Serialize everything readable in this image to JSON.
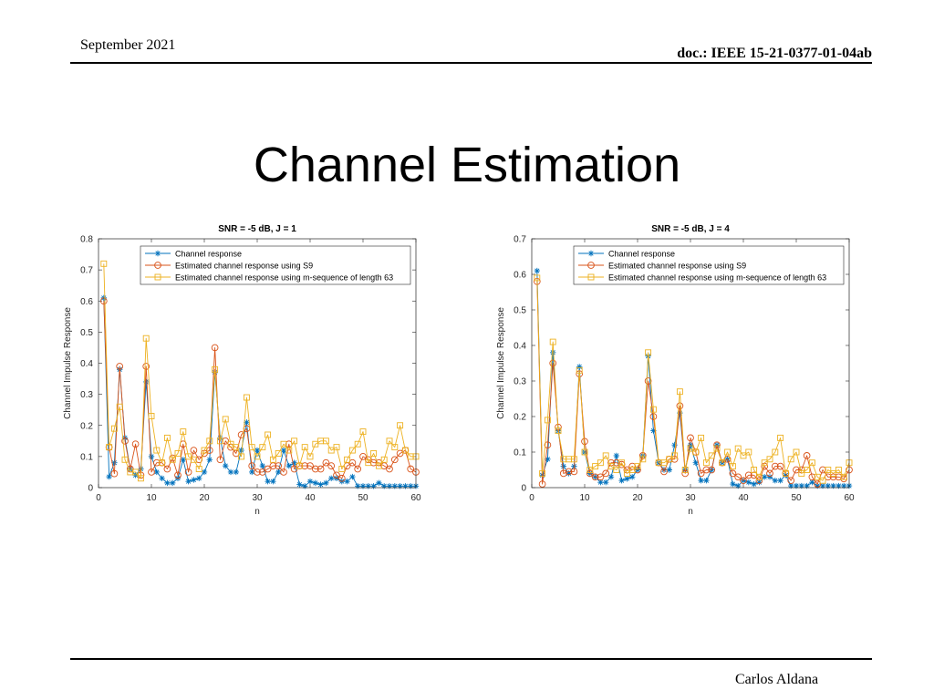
{
  "header": {
    "date": "September 2021",
    "doc_id": "doc.: IEEE 15-21-0377-01-04ab"
  },
  "slide": {
    "title": "Channel Estimation"
  },
  "footer": {
    "author": "Carlos Aldana"
  },
  "colors": {
    "series_1": "#0072BD",
    "series_2": "#D95319",
    "series_3": "#EDB120"
  },
  "chart_data": [
    {
      "type": "line",
      "title": "SNR = -5 dB, J = 1",
      "xlabel": "n",
      "ylabel": "Channel Impulse Response",
      "xlim": [
        0,
        60
      ],
      "ylim": [
        0,
        0.8
      ],
      "xticks": [
        0,
        10,
        20,
        30,
        40,
        50,
        60
      ],
      "yticks": [
        0,
        0.1,
        0.2,
        0.3,
        0.4,
        0.5,
        0.6,
        0.7,
        0.8
      ],
      "grid": false,
      "legend_position": "top-right",
      "x": [
        1,
        2,
        3,
        4,
        5,
        6,
        7,
        8,
        9,
        10,
        11,
        12,
        13,
        14,
        15,
        16,
        17,
        18,
        19,
        20,
        21,
        22,
        23,
        24,
        25,
        26,
        27,
        28,
        29,
        30,
        31,
        32,
        33,
        34,
        35,
        36,
        37,
        38,
        39,
        40,
        41,
        42,
        43,
        44,
        45,
        46,
        47,
        48,
        49,
        50,
        51,
        52,
        53,
        54,
        55,
        56,
        57,
        58,
        59,
        60
      ],
      "series": [
        {
          "name": "Channel response",
          "marker": "asterisk",
          "values": [
            0.61,
            0.035,
            0.08,
            0.38,
            0.16,
            0.06,
            0.04,
            0.06,
            0.34,
            0.1,
            0.05,
            0.03,
            0.015,
            0.015,
            0.03,
            0.09,
            0.02,
            0.025,
            0.03,
            0.05,
            0.09,
            0.37,
            0.16,
            0.07,
            0.05,
            0.05,
            0.12,
            0.21,
            0.05,
            0.12,
            0.07,
            0.02,
            0.02,
            0.05,
            0.12,
            0.07,
            0.08,
            0.01,
            0.005,
            0.02,
            0.015,
            0.01,
            0.015,
            0.03,
            0.03,
            0.02,
            0.02,
            0.035,
            0.005,
            0.005,
            0.005,
            0.005,
            0.015,
            0.005,
            0.005,
            0.005,
            0.005,
            0.005,
            0.005,
            0.005
          ]
        },
        {
          "name": "Estimated channel response using S9",
          "marker": "circle",
          "values": [
            0.6,
            0.13,
            0.045,
            0.39,
            0.15,
            0.06,
            0.14,
            0.04,
            0.39,
            0.05,
            0.08,
            0.08,
            0.06,
            0.095,
            0.04,
            0.14,
            0.05,
            0.12,
            0.09,
            0.11,
            0.12,
            0.45,
            0.09,
            0.15,
            0.13,
            0.11,
            0.17,
            0.19,
            0.07,
            0.05,
            0.05,
            0.06,
            0.07,
            0.07,
            0.05,
            0.14,
            0.06,
            0.07,
            0.07,
            0.07,
            0.06,
            0.06,
            0.08,
            0.07,
            0.04,
            0.03,
            0.07,
            0.08,
            0.06,
            0.1,
            0.09,
            0.08,
            0.08,
            0.07,
            0.06,
            0.09,
            0.11,
            0.12,
            0.06,
            0.05
          ]
        },
        {
          "name": "Estimated channel response using m-sequence of length 63",
          "marker": "square",
          "values": [
            0.72,
            0.13,
            0.19,
            0.26,
            0.09,
            0.05,
            0.05,
            0.03,
            0.48,
            0.23,
            0.12,
            0.08,
            0.16,
            0.09,
            0.11,
            0.18,
            0.1,
            0.09,
            0.06,
            0.12,
            0.15,
            0.38,
            0.15,
            0.22,
            0.14,
            0.13,
            0.1,
            0.29,
            0.13,
            0.1,
            0.13,
            0.17,
            0.09,
            0.11,
            0.14,
            0.12,
            0.15,
            0.07,
            0.13,
            0.1,
            0.14,
            0.15,
            0.15,
            0.12,
            0.13,
            0.06,
            0.09,
            0.12,
            0.14,
            0.18,
            0.08,
            0.11,
            0.07,
            0.09,
            0.15,
            0.13,
            0.2,
            0.12,
            0.1,
            0.1
          ]
        }
      ]
    },
    {
      "type": "line",
      "title": "SNR = -5 dB, J = 4",
      "xlabel": "n",
      "ylabel": "Channel Impulse Response",
      "xlim": [
        0,
        60
      ],
      "ylim": [
        0,
        0.7
      ],
      "xticks": [
        0,
        10,
        20,
        30,
        40,
        50,
        60
      ],
      "yticks": [
        0,
        0.1,
        0.2,
        0.3,
        0.4,
        0.5,
        0.6,
        0.7
      ],
      "grid": false,
      "legend_position": "top-right",
      "x": [
        1,
        2,
        3,
        4,
        5,
        6,
        7,
        8,
        9,
        10,
        11,
        12,
        13,
        14,
        15,
        16,
        17,
        18,
        19,
        20,
        21,
        22,
        23,
        24,
        25,
        26,
        27,
        28,
        29,
        30,
        31,
        32,
        33,
        34,
        35,
        36,
        37,
        38,
        39,
        40,
        41,
        42,
        43,
        44,
        45,
        46,
        47,
        48,
        49,
        50,
        51,
        52,
        53,
        54,
        55,
        56,
        57,
        58,
        59,
        60
      ],
      "series": [
        {
          "name": "Channel response",
          "marker": "asterisk",
          "values": [
            0.61,
            0.035,
            0.08,
            0.38,
            0.16,
            0.06,
            0.04,
            0.06,
            0.34,
            0.1,
            0.04,
            0.03,
            0.015,
            0.015,
            0.03,
            0.09,
            0.02,
            0.025,
            0.03,
            0.05,
            0.09,
            0.37,
            0.16,
            0.07,
            0.05,
            0.05,
            0.12,
            0.21,
            0.05,
            0.12,
            0.07,
            0.02,
            0.02,
            0.05,
            0.12,
            0.07,
            0.08,
            0.01,
            0.005,
            0.02,
            0.015,
            0.01,
            0.015,
            0.03,
            0.03,
            0.02,
            0.02,
            0.035,
            0.005,
            0.005,
            0.005,
            0.005,
            0.015,
            0.005,
            0.005,
            0.005,
            0.005,
            0.005,
            0.005,
            0.005
          ]
        },
        {
          "name": "Estimated channel response using S9",
          "marker": "circle",
          "values": [
            0.58,
            0.01,
            0.12,
            0.35,
            0.17,
            0.04,
            0.045,
            0.045,
            0.32,
            0.13,
            0.04,
            0.03,
            0.03,
            0.04,
            0.07,
            0.07,
            0.065,
            0.05,
            0.06,
            0.05,
            0.09,
            0.3,
            0.2,
            0.07,
            0.045,
            0.08,
            0.08,
            0.23,
            0.04,
            0.14,
            0.1,
            0.04,
            0.05,
            0.05,
            0.12,
            0.07,
            0.08,
            0.04,
            0.03,
            0.02,
            0.035,
            0.035,
            0.02,
            0.06,
            0.04,
            0.06,
            0.06,
            0.04,
            0.02,
            0.05,
            0.05,
            0.09,
            0.03,
            0.01,
            0.05,
            0.03,
            0.03,
            0.03,
            0.025,
            0.05
          ]
        },
        {
          "name": "Estimated channel response using m-sequence of length 63",
          "marker": "square",
          "values": [
            0.59,
            0.04,
            0.19,
            0.41,
            0.16,
            0.08,
            0.08,
            0.08,
            0.33,
            0.1,
            0.05,
            0.06,
            0.07,
            0.09,
            0.06,
            0.05,
            0.07,
            0.04,
            0.05,
            0.06,
            0.08,
            0.38,
            0.22,
            0.07,
            0.07,
            0.08,
            0.09,
            0.27,
            0.05,
            0.11,
            0.1,
            0.14,
            0.07,
            0.09,
            0.11,
            0.07,
            0.1,
            0.06,
            0.11,
            0.09,
            0.1,
            0.05,
            0.03,
            0.07,
            0.08,
            0.1,
            0.14,
            0.04,
            0.08,
            0.1,
            0.04,
            0.05,
            0.07,
            0.03,
            0.02,
            0.05,
            0.04,
            0.05,
            0.03,
            0.07
          ]
        }
      ]
    }
  ]
}
